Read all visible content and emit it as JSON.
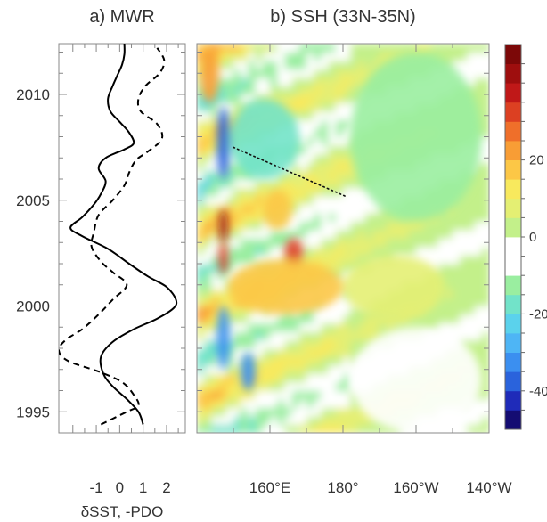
{
  "chart_data": [
    {
      "panel": "a",
      "type": "line",
      "title": "a) MWR",
      "xlabel": "δSST, -PDO",
      "ylabel": "",
      "xlim": [
        -2.6,
        2.8
      ],
      "ylim": [
        1994,
        2012.4
      ],
      "xticks": [
        "-1",
        "0",
        "1",
        "2"
      ],
      "yticks": [
        "1995",
        "2000",
        "2005",
        "2010"
      ],
      "grid": false,
      "series": [
        {
          "style": "solid",
          "color": "#000000",
          "points": [
            [
              1.0,
              1994.4
            ],
            [
              0.8,
              1995.0
            ],
            [
              0.3,
              1995.6
            ],
            [
              -0.3,
              1996.2
            ],
            [
              -0.7,
              1996.8
            ],
            [
              -0.8,
              1997.6
            ],
            [
              -0.3,
              1998.3
            ],
            [
              0.6,
              1998.9
            ],
            [
              1.6,
              1999.4
            ],
            [
              2.3,
              1999.9
            ],
            [
              2.4,
              2000.3
            ],
            [
              2.0,
              2000.9
            ],
            [
              1.2,
              2001.4
            ],
            [
              0.4,
              2002.0
            ],
            [
              -0.5,
              2002.7
            ],
            [
              -1.6,
              2003.3
            ],
            [
              -2.1,
              2003.7
            ],
            [
              -1.6,
              2004.2
            ],
            [
              -1.1,
              2004.8
            ],
            [
              -0.8,
              2005.3
            ],
            [
              -0.6,
              2005.9
            ],
            [
              -0.9,
              2006.5
            ],
            [
              -0.6,
              2007.0
            ],
            [
              0.2,
              2007.4
            ],
            [
              0.6,
              2007.7
            ],
            [
              0.4,
              2008.2
            ],
            [
              0.0,
              2008.7
            ],
            [
              -0.4,
              2009.2
            ],
            [
              -0.5,
              2009.8
            ],
            [
              -0.3,
              2010.4
            ],
            [
              -0.1,
              2010.9
            ],
            [
              0.1,
              2011.4
            ],
            [
              0.2,
              2011.9
            ],
            [
              0.2,
              2012.4
            ]
          ]
        },
        {
          "style": "dashed",
          "color": "#000000",
          "points": [
            [
              -0.8,
              1994.4
            ],
            [
              0.3,
              1995.0
            ],
            [
              0.8,
              1995.3
            ],
            [
              0.6,
              1995.8
            ],
            [
              0.1,
              1996.4
            ],
            [
              -0.9,
              1996.9
            ],
            [
              -2.2,
              1997.4
            ],
            [
              -2.6,
              1997.9
            ],
            [
              -2.3,
              1998.4
            ],
            [
              -1.6,
              1998.9
            ],
            [
              -0.9,
              1999.6
            ],
            [
              -0.3,
              2000.3
            ],
            [
              0.3,
              2001.0
            ],
            [
              -0.3,
              2001.6
            ],
            [
              -0.8,
              2002.1
            ],
            [
              -1.2,
              2002.8
            ],
            [
              -1.1,
              2003.5
            ],
            [
              -0.9,
              2004.3
            ],
            [
              -0.3,
              2005.0
            ],
            [
              0.2,
              2005.7
            ],
            [
              0.4,
              2006.3
            ],
            [
              0.7,
              2006.9
            ],
            [
              1.2,
              2007.3
            ],
            [
              1.8,
              2007.9
            ],
            [
              1.6,
              2008.6
            ],
            [
              0.9,
              2009.2
            ],
            [
              0.8,
              2009.8
            ],
            [
              1.1,
              2010.4
            ],
            [
              1.7,
              2011.0
            ],
            [
              1.9,
              2011.6
            ],
            [
              1.6,
              2012.2
            ]
          ]
        }
      ]
    },
    {
      "panel": "b",
      "type": "heatmap",
      "title": "b) SSH (33N-35N)",
      "xlabel": "",
      "ylabel": "",
      "xlim": [
        140,
        220
      ],
      "ylim": [
        1994,
        2012.4
      ],
      "xticks": [
        "160°E",
        "180°",
        "160°W",
        "140°W"
      ],
      "colorbar": {
        "vmin": -50,
        "vmax": 50,
        "step": 5,
        "ticks": [
          "20",
          "0",
          "-20",
          "-40"
        ],
        "colors": [
          "#140c72",
          "#1f2bb9",
          "#2a63dc",
          "#3b8ff0",
          "#4eb5f5",
          "#5bd2ec",
          "#72e3c9",
          "#9aeea0",
          "#ffffff",
          "#ffffff",
          "#c3f08a",
          "#e4ef73",
          "#f8e95d",
          "#fcc746",
          "#f89d35",
          "#ef6f2a",
          "#dc4022",
          "#c01818",
          "#9e0e0e",
          "#7c0808"
        ]
      },
      "annotations": [
        {
          "type": "dotted-line",
          "from": [
            150,
            2007.5
          ],
          "to": [
            180.5,
            2005.2
          ]
        }
      ],
      "features": [
        {
          "x": [
            146,
            148.5
          ],
          "y": [
            2003,
            2004.6
          ],
          "value": 42
        },
        {
          "x": [
            146,
            148.5
          ],
          "y": [
            2001.5,
            2003
          ],
          "value": 30
        },
        {
          "x": [
            164,
            169
          ],
          "y": [
            2001.8,
            2003.2
          ],
          "value": 30
        },
        {
          "x": [
            148.5,
            180
          ],
          "y": [
            1999.6,
            2002.2
          ],
          "value": 18
        },
        {
          "x": [
            180,
            208
          ],
          "y": [
            1999.4,
            2002.4
          ],
          "value": 8
        },
        {
          "x": [
            145.5,
            149
          ],
          "y": [
            2006,
            2009.4
          ],
          "value": -40
        },
        {
          "x": [
            149,
            168
          ],
          "y": [
            2006,
            2009.8
          ],
          "value": -20
        },
        {
          "x": [
            145.5,
            149
          ],
          "y": [
            1997,
            2000
          ],
          "value": -35
        },
        {
          "x": [
            152,
            156
          ],
          "y": [
            1996,
            1997.8
          ],
          "value": -35
        },
        {
          "x": [
            141,
            146
          ],
          "y": [
            2009.6,
            2012.2
          ],
          "value": 22
        },
        {
          "x": [
            158,
            166
          ],
          "y": [
            2003.6,
            2005.5
          ],
          "value": 15
        },
        {
          "x": [
            182,
            218
          ],
          "y": [
            2004,
            2012
          ],
          "value": -12
        },
        {
          "x": [
            182,
            218
          ],
          "y": [
            1994,
            1999
          ],
          "value": -8
        }
      ]
    }
  ]
}
